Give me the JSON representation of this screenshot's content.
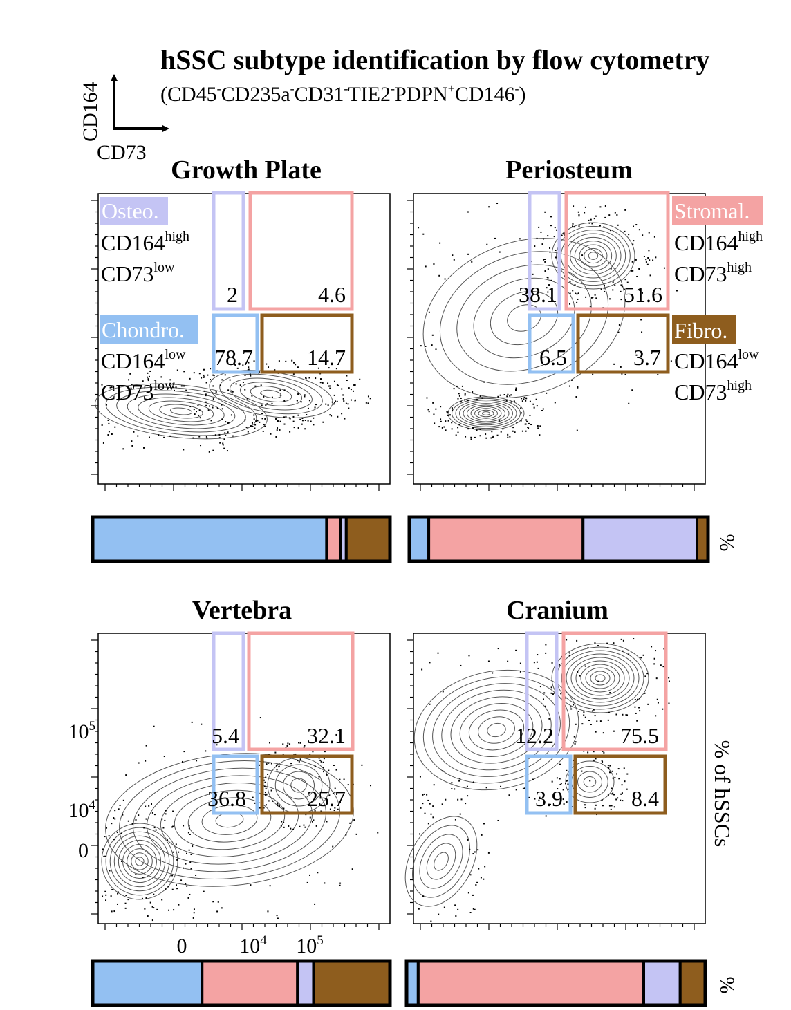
{
  "title": "hSSC subtype identification by flow cytometry",
  "subtitle": {
    "open": "(CD45",
    "m1": "-",
    "b1": "CD235a",
    "m2": "-",
    "b2": "CD31",
    "m3": "-",
    "b3": "TIE2",
    "m4": "-",
    "b4": "PDPN",
    "m5": "+",
    "b5": "CD146",
    "m6": "-",
    "close": ")"
  },
  "axis_key": {
    "y": "CD164",
    "x": "CD73"
  },
  "colors": {
    "osteo": "#c4c4f4",
    "stromal": "#f4a3a3",
    "chondro": "#93c0f2",
    "fibro": "#8e5d1e"
  },
  "legend": {
    "osteo": {
      "name": "Osteo.",
      "l1": "CD164",
      "s1": "high",
      "l2": "CD73",
      "s2": "low"
    },
    "chondro": {
      "name": "Chondro.",
      "l1": "CD164",
      "s1": "low",
      "l2": "CD73",
      "s2": "low"
    },
    "stromal": {
      "name": "Stromal.",
      "l1": "CD164",
      "s1": "high",
      "l2": "CD73",
      "s2": "high"
    },
    "fibro": {
      "name": "Fibro.",
      "l1": "CD164",
      "s1": "low",
      "l2": "CD73",
      "s2": "high"
    }
  },
  "y_ticks": {
    "t1": "10",
    "t1e": "5",
    "t2": "10",
    "t2e": "4",
    "t3": "0"
  },
  "x_ticks": {
    "t1": "0",
    "t2": "10",
    "t2e": "4",
    "t3": "10",
    "t3e": "5"
  },
  "bar_unit": "%",
  "right_label": "% of hSSCs",
  "chart_data": [
    {
      "type": "bar",
      "stacked": true,
      "title": "Growth Plate",
      "categories": [
        "Chondro.",
        "Stromal.",
        "Osteo.",
        "Fibro."
      ],
      "values": [
        78.7,
        4.6,
        2,
        14.7
      ],
      "gates": {
        "osteo": "2",
        "stromal": "4.6",
        "chondro": "78.7",
        "fibro": "14.7"
      }
    },
    {
      "type": "bar",
      "stacked": true,
      "title": "Periosteum",
      "categories": [
        "Chondro.",
        "Stromal.",
        "Osteo.",
        "Fibro."
      ],
      "values": [
        6.5,
        51.6,
        38.1,
        3.7
      ],
      "gates": {
        "osteo": "38.1",
        "stromal": "51.6",
        "chondro": "6.5",
        "fibro": "3.7"
      }
    },
    {
      "type": "bar",
      "stacked": true,
      "title": "Vertebra",
      "categories": [
        "Chondro.",
        "Stromal.",
        "Osteo.",
        "Fibro."
      ],
      "values": [
        36.8,
        32.1,
        5.4,
        25.7
      ],
      "gates": {
        "osteo": "5.4",
        "stromal": "32.1",
        "chondro": "36.8",
        "fibro": "25.7"
      }
    },
    {
      "type": "bar",
      "stacked": true,
      "title": "Cranium",
      "categories": [
        "Chondro.",
        "Stromal.",
        "Osteo.",
        "Fibro."
      ],
      "values": [
        3.9,
        75.5,
        12.2,
        8.4
      ],
      "gates": {
        "osteo": "12.2",
        "stromal": "75.5",
        "chondro": "3.9",
        "fibro": "8.4"
      }
    }
  ]
}
